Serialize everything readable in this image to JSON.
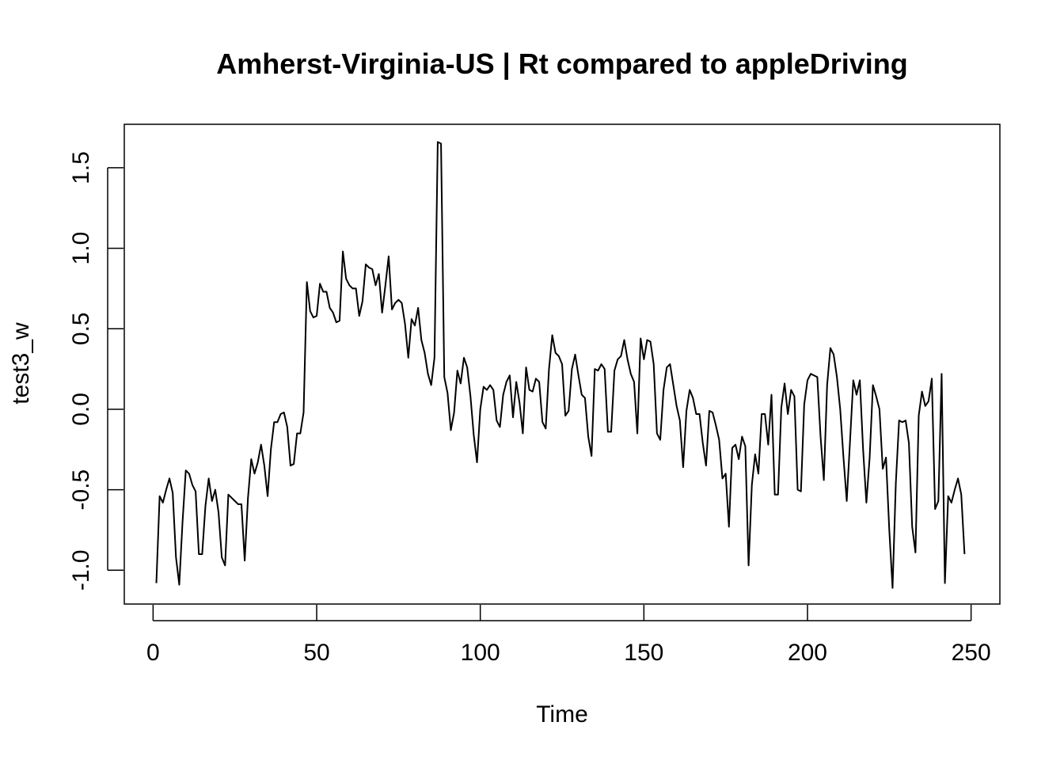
{
  "chart_data": {
    "type": "line",
    "title": "Amherst-Virginia-US | Rt compared to appleDriving",
    "xlabel": "Time",
    "ylabel": "test3_w",
    "xlim": [
      -8.8,
      258.8
    ],
    "ylim": [
      -1.21,
      1.77
    ],
    "xticks": [
      0,
      50,
      100,
      150,
      200,
      250
    ],
    "yticks": [
      -1.0,
      -0.5,
      0.0,
      0.5,
      1.0,
      1.5
    ],
    "xtick_labels": [
      "0",
      "50",
      "100",
      "150",
      "200",
      "250"
    ],
    "ytick_labels": [
      "-1.0",
      "-0.5",
      "0.0",
      "0.5",
      "1.0",
      "1.5"
    ],
    "grid": false,
    "legend": "none",
    "line_color": "#000000",
    "series": [
      {
        "x_start": 1,
        "values": [
          -1.08,
          -0.54,
          -0.58,
          -0.5,
          -0.43,
          -0.52,
          -0.92,
          -1.09,
          -0.7,
          -0.38,
          -0.4,
          -0.47,
          -0.51,
          -0.9,
          -0.9,
          -0.6,
          -0.43,
          -0.57,
          -0.5,
          -0.64,
          -0.92,
          -0.97,
          -0.53,
          -0.55,
          -0.57,
          -0.59,
          -0.59,
          -0.94,
          -0.55,
          -0.31,
          -0.4,
          -0.33,
          -0.22,
          -0.35,
          -0.54,
          -0.25,
          -0.08,
          -0.08,
          -0.03,
          -0.02,
          -0.11,
          -0.35,
          -0.34,
          -0.15,
          -0.15,
          -0.02,
          0.79,
          0.61,
          0.57,
          0.58,
          0.78,
          0.73,
          0.73,
          0.63,
          0.6,
          0.54,
          0.55,
          0.98,
          0.81,
          0.77,
          0.75,
          0.75,
          0.58,
          0.67,
          0.9,
          0.88,
          0.87,
          0.77,
          0.84,
          0.6,
          0.77,
          0.95,
          0.62,
          0.66,
          0.68,
          0.66,
          0.53,
          0.32,
          0.56,
          0.52,
          0.63,
          0.43,
          0.35,
          0.22,
          0.15,
          0.32,
          1.66,
          1.65,
          0.2,
          0.1,
          -0.13,
          -0.02,
          0.24,
          0.16,
          0.32,
          0.26,
          0.08,
          -0.16,
          -0.33,
          0.0,
          0.14,
          0.12,
          0.15,
          0.12,
          -0.07,
          -0.11,
          0.09,
          0.17,
          0.21,
          -0.05,
          0.17,
          0.04,
          -0.15,
          0.26,
          0.12,
          0.11,
          0.19,
          0.17,
          -0.08,
          -0.12,
          0.25,
          0.46,
          0.35,
          0.33,
          0.28,
          -0.04,
          -0.01,
          0.25,
          0.34,
          0.21,
          0.09,
          0.07,
          -0.17,
          -0.29,
          0.25,
          0.24,
          0.28,
          0.25,
          -0.14,
          -0.14,
          0.24,
          0.31,
          0.33,
          0.43,
          0.31,
          0.22,
          0.17,
          -0.15,
          0.44,
          0.31,
          0.43,
          0.42,
          0.28,
          -0.15,
          -0.19,
          0.12,
          0.26,
          0.28,
          0.15,
          0.02,
          -0.07,
          -0.36,
          -0.01,
          0.12,
          0.07,
          -0.03,
          -0.03,
          -0.21,
          -0.35,
          -0.01,
          -0.02,
          -0.1,
          -0.19,
          -0.43,
          -0.4,
          -0.73,
          -0.24,
          -0.22,
          -0.31,
          -0.17,
          -0.23,
          -0.97,
          -0.47,
          -0.28,
          -0.4,
          -0.03,
          -0.03,
          -0.22,
          0.09,
          -0.53,
          -0.53,
          0.01,
          0.16,
          -0.03,
          0.12,
          0.08,
          -0.5,
          -0.51,
          0.03,
          0.18,
          0.22,
          0.21,
          0.2,
          -0.17,
          -0.44,
          0.15,
          0.38,
          0.34,
          0.2,
          0.0,
          -0.3,
          -0.57,
          -0.2,
          0.18,
          0.09,
          0.18,
          -0.25,
          -0.58,
          -0.3,
          0.15,
          0.08,
          0.0,
          -0.37,
          -0.3,
          -0.75,
          -1.11,
          -0.46,
          -0.07,
          -0.08,
          -0.07,
          -0.21,
          -0.73,
          -0.89,
          -0.04,
          0.11,
          0.02,
          0.05,
          0.19,
          -0.62,
          -0.57,
          0.22,
          -1.08,
          -0.54,
          -0.58,
          -0.5,
          -0.43,
          -0.53,
          -0.9
        ]
      }
    ]
  }
}
